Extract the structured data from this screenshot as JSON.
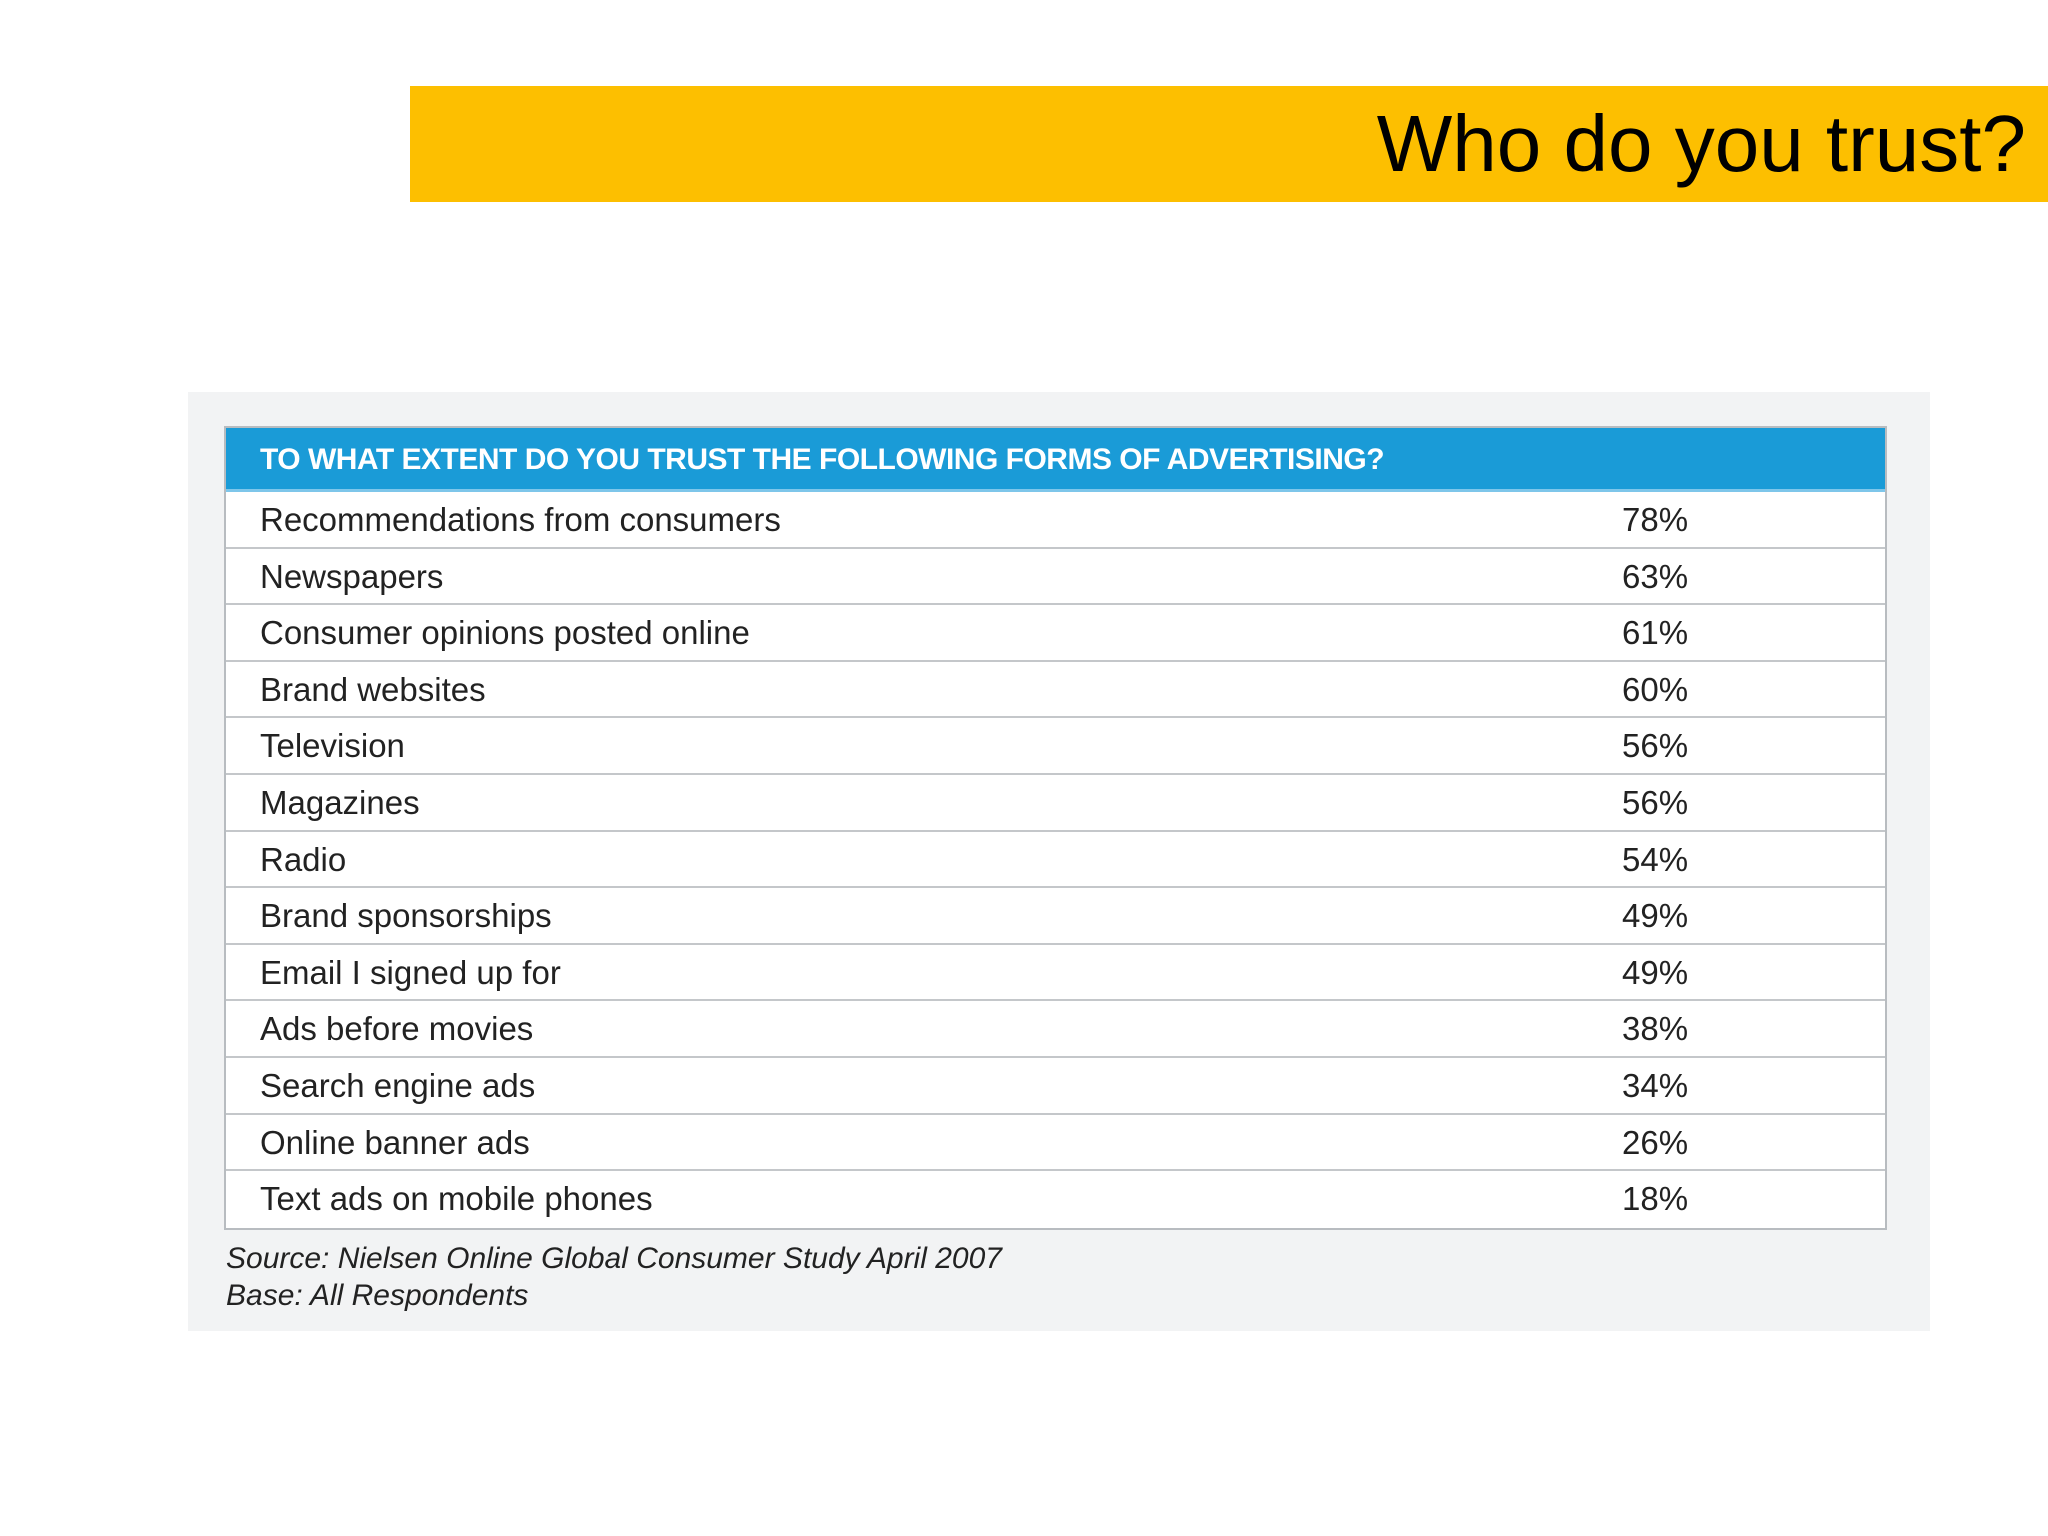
{
  "slide": {
    "title": "Who do you trust?"
  },
  "chart_data": {
    "type": "table",
    "title": "TO WHAT EXTENT DO YOU TRUST THE FOLLOWING FORMS OF ADVERTISING?",
    "rows": [
      {
        "label": "Recommendations from consumers",
        "value": "78%"
      },
      {
        "label": "Newspapers",
        "value": "63%"
      },
      {
        "label": "Consumer opinions posted online",
        "value": "61%"
      },
      {
        "label": "Brand websites",
        "value": "60%"
      },
      {
        "label": "Television",
        "value": "56%"
      },
      {
        "label": "Magazines",
        "value": "56%"
      },
      {
        "label": "Radio",
        "value": "54%"
      },
      {
        "label": "Brand sponsorships",
        "value": "49%"
      },
      {
        "label": "Email I signed up for",
        "value": "49%"
      },
      {
        "label": "Ads before movies",
        "value": "38%"
      },
      {
        "label": "Search engine ads",
        "value": "34%"
      },
      {
        "label": "Online banner ads",
        "value": "26%"
      },
      {
        "label": "Text ads on mobile phones",
        "value": "18%"
      }
    ],
    "source": "Source: Nielsen Online Global Consumer Study April 2007",
    "base": "Base: All Respondents"
  },
  "colors": {
    "title_bar": "#fdbf00",
    "table_header": "#1a9bd7",
    "panel_background": "#f2f3f4"
  }
}
